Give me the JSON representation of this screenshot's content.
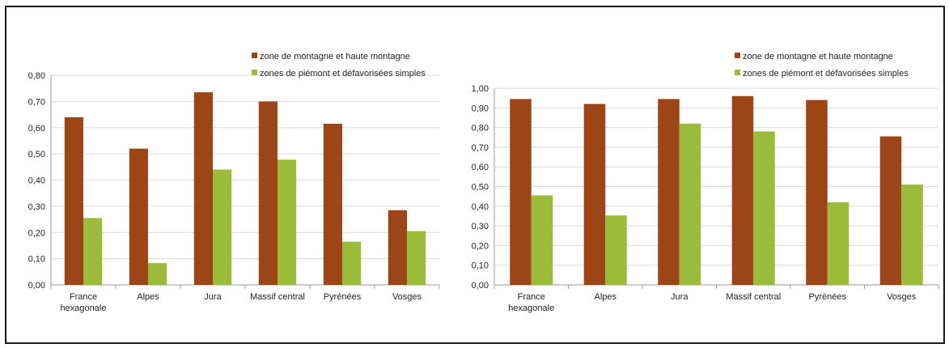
{
  "chart_data": [
    {
      "type": "bar",
      "categories": [
        [
          "France",
          "hexagonale"
        ],
        [
          "Alpes"
        ],
        [
          "Jura"
        ],
        [
          "Massif central"
        ],
        [
          "Pyrénées"
        ],
        [
          "Vosges"
        ]
      ],
      "series": [
        {
          "name": "zone de montagne et haute montagne",
          "color": "#9c4516",
          "values": [
            0.64,
            0.52,
            0.735,
            0.7,
            0.615,
            0.285
          ]
        },
        {
          "name": "zones de piémont et défavorisées simples",
          "color": "#9bbb3b",
          "values": [
            0.255,
            0.083,
            0.44,
            0.478,
            0.165,
            0.205
          ]
        }
      ],
      "ylim": [
        0,
        0.8
      ],
      "yticks": [
        "0,00",
        "0,10",
        "0,20",
        "0,30",
        "0,40",
        "0,50",
        "0,60",
        "0,70",
        "0,80"
      ],
      "grid": true,
      "legend": "top-right",
      "title": "",
      "xlabel": "",
      "ylabel": ""
    },
    {
      "type": "bar",
      "categories": [
        [
          "France",
          "hexagonale"
        ],
        [
          "Alpes"
        ],
        [
          "Jura"
        ],
        [
          "Massif central"
        ],
        [
          "Pyrénées"
        ],
        [
          "Vosges"
        ]
      ],
      "series": [
        {
          "name": "zone de montagne et haute montagne",
          "color": "#9c4516",
          "values": [
            0.945,
            0.92,
            0.945,
            0.96,
            0.94,
            0.755
          ]
        },
        {
          "name": "zones de piémont et défavorisées simples",
          "color": "#9bbb3b",
          "values": [
            0.455,
            0.353,
            0.82,
            0.78,
            0.42,
            0.51
          ]
        }
      ],
      "ylim": [
        0,
        1.0
      ],
      "yticks": [
        "0,00",
        "0,10",
        "0,20",
        "0,30",
        "0,40",
        "0,50",
        "0,60",
        "0,70",
        "0,80",
        "0,90",
        "1,00"
      ],
      "grid": true,
      "legend": "top-right",
      "title": "",
      "xlabel": "",
      "ylabel": ""
    }
  ]
}
